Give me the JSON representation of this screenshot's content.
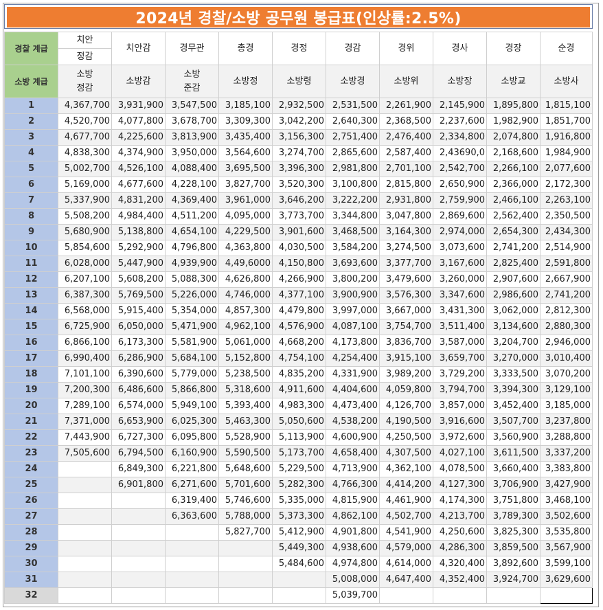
{
  "title": "2024년 경찰/소방 공무원 봉급표(인상률:2.5%)",
  "police_label": "경찰 계급",
  "fire_label": "소방 계급",
  "police_ranks": [
    [
      "치안",
      "정감"
    ],
    [
      "치안감"
    ],
    [
      "경무관"
    ],
    [
      "총경"
    ],
    [
      "경정"
    ],
    [
      "경감"
    ],
    [
      "경위"
    ],
    [
      "경사"
    ],
    [
      "경장"
    ],
    [
      "순경"
    ]
  ],
  "fire_ranks": [
    [
      "소방",
      "정감"
    ],
    [
      "소방감"
    ],
    [
      "소방",
      "준감"
    ],
    [
      "소방정"
    ],
    [
      "소방령"
    ],
    [
      "소방경"
    ],
    [
      "소방위"
    ],
    [
      "소방장"
    ],
    [
      "소방교"
    ],
    [
      "소방사"
    ]
  ],
  "rows": [
    {
      "grade": "1",
      "v": [
        "4,367,700",
        "3,931,900",
        "3,547,500",
        "3,185,100",
        "2,932,500",
        "2,531,500",
        "2,261,900",
        "2,145,900",
        "1,895,800",
        "1,815,100"
      ]
    },
    {
      "grade": "2",
      "v": [
        "4,520,700",
        "4,077,800",
        "3,678,700",
        "3,309,300",
        "3,042,200",
        "2,640,300",
        "2,368,500",
        "2,237,600",
        "1,982,900",
        "1,851,700"
      ]
    },
    {
      "grade": "3",
      "v": [
        "4,677,700",
        "4,225,600",
        "3,813,900",
        "3,435,400",
        "3,156,300",
        "2,751,400",
        "2,476,400",
        "2,334,800",
        "2,074,800",
        "1,916,800"
      ]
    },
    {
      "grade": "4",
      "v": [
        "4,838,300",
        "4,374,900",
        "3,950,000",
        "3,564,600",
        "3,274,700",
        "2,865,600",
        "2,587,400",
        "2,43690,0",
        "2,168,600",
        "1,984,900"
      ]
    },
    {
      "grade": "5",
      "v": [
        "5,002,700",
        "4,526,100",
        "4,088,400",
        "3,695,500",
        "3,396,300",
        "2,981,800",
        "2,701,100",
        "2,542,700",
        "2,266,100",
        "2,077,600"
      ]
    },
    {
      "grade": "6",
      "v": [
        "5,169,000",
        "4,677,600",
        "4,228,100",
        "3,827,700",
        "3,520,300",
        "3,100,800",
        "2,815,800",
        "2,650,900",
        "2,366,000",
        "2,172,300"
      ]
    },
    {
      "grade": "7",
      "v": [
        "5,337,900",
        "4,831,200",
        "4,369,400",
        "3,961,000",
        "3,646,200",
        "3,222,200",
        "2,931,800",
        "2,759,900",
        "2,466,100",
        "2,263,100"
      ]
    },
    {
      "grade": "8",
      "v": [
        "5,508,200",
        "4,984,400",
        "4,511,200",
        "4,095,000",
        "3,773,700",
        "3,344,800",
        "3,047,800",
        "2,869,600",
        "2,562,400",
        "2,350,500"
      ]
    },
    {
      "grade": "9",
      "v": [
        "5,680,900",
        "5,138,800",
        "4,654,100",
        "4,229,500",
        "3,901,600",
        "3,468,500",
        "3,164,300",
        "2,974,000",
        "2,654,300",
        "2,434,300"
      ]
    },
    {
      "grade": "10",
      "v": [
        "5,854,600",
        "5,292,900",
        "4,796,800",
        "4,363,800",
        "4,030,500",
        "3,584,200",
        "3,274,500",
        "3,073,600",
        "2,741,200",
        "2,514,900"
      ]
    },
    {
      "grade": "11",
      "v": [
        "6,028,000",
        "5,447,900",
        "4,939,900",
        "4,49,6000",
        "4,150,800",
        "3,693,600",
        "3,377,700",
        "3,167,600",
        "2,825,400",
        "2,591,800"
      ]
    },
    {
      "grade": "12",
      "v": [
        "6,207,100",
        "5,608,200",
        "5,088,300",
        "4,626,800",
        "4,266,900",
        "3,800,200",
        "3,479,600",
        "3,260,000",
        "2,907,600",
        "2,667,900"
      ]
    },
    {
      "grade": "13",
      "v": [
        "6,387,300",
        "5,769,500",
        "5,226,000",
        "4,746,000",
        "4,377,100",
        "3,900,900",
        "3,576,300",
        "3,347,600",
        "2,986,600",
        "2,741,200"
      ]
    },
    {
      "grade": "14",
      "v": [
        "6,568,000",
        "5,915,400",
        "5,354,000",
        "4,857,300",
        "4,479,800",
        "3,997,000",
        "3,667,000",
        "3,431,300",
        "3,062,000",
        "2,812,300"
      ]
    },
    {
      "grade": "15",
      "v": [
        "6,725,900",
        "6,050,000",
        "5,471,900",
        "4,962,100",
        "4,576,900",
        "4,087,100",
        "3,754,700",
        "3,511,400",
        "3,134,600",
        "2,880,300"
      ]
    },
    {
      "grade": "16",
      "v": [
        "6,866,100",
        "6,173,300",
        "5,581,900",
        "5,061,000",
        "4,668,200",
        "4,173,800",
        "3,836,700",
        "3,587,000",
        "3,204,700",
        "2,946,000"
      ]
    },
    {
      "grade": "17",
      "v": [
        "6,990,400",
        "6,286,900",
        "5,684,100",
        "5,152,800",
        "4,754,100",
        "4,254,400",
        "3,915,100",
        "3,659,700",
        "3,270,000",
        "3,010,400"
      ]
    },
    {
      "grade": "18",
      "v": [
        "7,101,100",
        "6,390,600",
        "5,779,000",
        "5,238,500",
        "4,835,200",
        "4,331,900",
        "3,989,200",
        "3,729,200",
        "3,333,500",
        "3,070,200"
      ]
    },
    {
      "grade": "19",
      "v": [
        "7,200,300",
        "6,486,600",
        "5,866,800",
        "5,318,600",
        "4,911,600",
        "4,404,600",
        "4,059,800",
        "3,794,700",
        "3,394,300",
        "3,129,100"
      ]
    },
    {
      "grade": "20",
      "v": [
        "7,289,100",
        "6,574,000",
        "5,949,100",
        "5,393,400",
        "4,983,300",
        "4,473,400",
        "4,126,700",
        "3,857,000",
        "3,452,400",
        "3,185,000"
      ]
    },
    {
      "grade": "21",
      "v": [
        "7,371,000",
        "6,653,900",
        "6,025,300",
        "5,463,300",
        "5,050,600",
        "4,538,200",
        "4,190,500",
        "3,916,600",
        "3,507,700",
        "3,237,800"
      ]
    },
    {
      "grade": "22",
      "v": [
        "7,443,900",
        "6,727,300",
        "6,095,800",
        "5,528,900",
        "5,113,900",
        "4,600,900",
        "4,250,500",
        "3,972,600",
        "3,560,900",
        "3,288,800"
      ]
    },
    {
      "grade": "23",
      "v": [
        "7,505,600",
        "6,794,500",
        "6,160,900",
        "5,590,500",
        "5,173,700",
        "4,658,400",
        "4,307,500",
        "4,027,100",
        "3,611,500",
        "3,337,200"
      ]
    },
    {
      "grade": "24",
      "v": [
        "",
        "6,849,300",
        "6,221,800",
        "5,648,600",
        "5,229,500",
        "4,713,900",
        "4,362,100",
        "4,078,500",
        "3,660,400",
        "3,383,800"
      ]
    },
    {
      "grade": "25",
      "v": [
        "",
        "6,901,800",
        "6,271,600",
        "5,701,600",
        "5,282,300",
        "4,766,300",
        "4,414,200",
        "4,127,300",
        "3,706,900",
        "3,427,900"
      ]
    },
    {
      "grade": "26",
      "v": [
        "",
        "",
        "6,319,400",
        "5,746,600",
        "5,335,000",
        "4,815,900",
        "4,461,900",
        "4,174,300",
        "3,751,800",
        "3,468,100"
      ]
    },
    {
      "grade": "27",
      "v": [
        "",
        "",
        "6,363,600",
        "5,788,000",
        "5,373,300",
        "4,862,100",
        "4,502,700",
        "4,213,700",
        "3,789,300",
        "3,502,600"
      ]
    },
    {
      "grade": "28",
      "v": [
        "",
        "",
        "",
        "5,827,700",
        "5,412,900",
        "4,901,800",
        "4,541,900",
        "4,250,600",
        "3,825,300",
        "3,535,800"
      ]
    },
    {
      "grade": "29",
      "v": [
        "",
        "",
        "",
        "",
        "5,449,300",
        "4,938,600",
        "4,579,000",
        "4,286,300",
        "3,859,500",
        "3,567,900"
      ]
    },
    {
      "grade": "30",
      "v": [
        "",
        "",
        "",
        "",
        "5,484,600",
        "4,974,800",
        "4,614,000",
        "4,320,400",
        "3,892,600",
        "3,599,100"
      ]
    },
    {
      "grade": "31",
      "v": [
        "",
        "",
        "",
        "",
        "",
        "5,008,000",
        "4,647,400",
        "4,352,400",
        "3,924,700",
        "3,629,600"
      ]
    },
    {
      "grade": "32",
      "v": [
        "",
        "",
        "",
        "",
        "",
        "5,039,700",
        "",
        "",
        "",
        ""
      ]
    }
  ]
}
